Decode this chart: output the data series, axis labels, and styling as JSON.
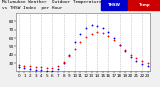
{
  "bg_color": "#f0f0f0",
  "plot_bg_color": "#ffffff",
  "grid_color": "#aaaaaa",
  "x_labels": [
    "0",
    "1",
    "2",
    "3",
    "4",
    "5",
    "6",
    "7",
    "8",
    "9",
    "10",
    "11",
    "12",
    "13",
    "14",
    "15",
    "16",
    "17",
    "18",
    "19",
    "20",
    "21",
    "22",
    "23"
  ],
  "ylim": [
    20,
    90
  ],
  "yticks": [
    30,
    40,
    50,
    60,
    70,
    80
  ],
  "hours": [
    0,
    1,
    2,
    3,
    4,
    5,
    6,
    7,
    8,
    9,
    10,
    11,
    12,
    13,
    14,
    15,
    16,
    17,
    18,
    19,
    20,
    21,
    22,
    23
  ],
  "temp_red": [
    28,
    27,
    26,
    25,
    25,
    24,
    24,
    26,
    31,
    38,
    47,
    55,
    61,
    65,
    67,
    66,
    63,
    58,
    52,
    46,
    40,
    36,
    33,
    30
  ],
  "thsw_blue": [
    25,
    24,
    23,
    22,
    22,
    21,
    21,
    23,
    30,
    40,
    55,
    65,
    72,
    76,
    75,
    72,
    67,
    60,
    52,
    44,
    37,
    32,
    29,
    26
  ],
  "red_color": "#ff0000",
  "blue_color": "#0000ff",
  "black_color": "#000000",
  "legend_blue": "#0000cc",
  "legend_red": "#cc0000",
  "marker_size": 1.8,
  "title_fontsize": 3.2,
  "tick_fontsize": 3.0,
  "title_line1": "Milwaukee Weather  Outdoor Temperature",
  "title_line2": "vs THSW Index  per Hour",
  "title_line3": "(24 Hours)",
  "legend_thsw": "THSW",
  "legend_temp": "Temp"
}
